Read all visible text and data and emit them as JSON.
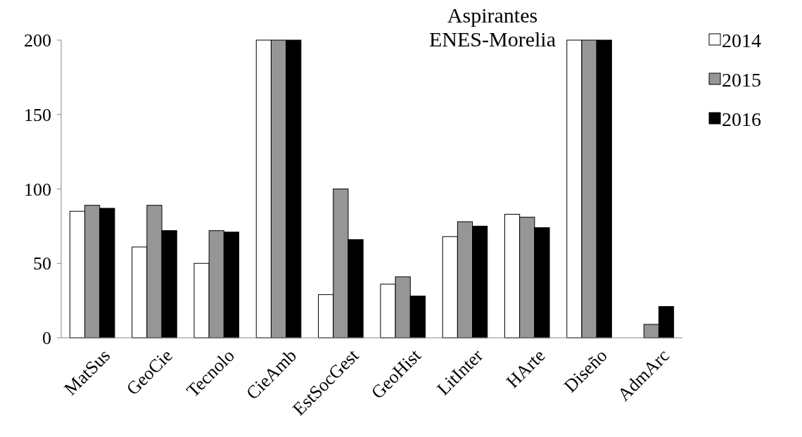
{
  "chart_data": {
    "type": "bar",
    "title": "Aspirantes\nENES-Morelia",
    "categories": [
      "MatSus",
      "GeoCie",
      "Tecnolo",
      "CieAmb",
      "EstSocGest",
      "GeoHist",
      "LitInter",
      "HArte",
      "Diseño",
      "AdmArc"
    ],
    "series": [
      {
        "name": "2014",
        "color": "#ffffff",
        "values": [
          85,
          61,
          50,
          200,
          29,
          36,
          68,
          83,
          200,
          0
        ]
      },
      {
        "name": "2015",
        "color": "#969696",
        "values": [
          89,
          89,
          72,
          200,
          100,
          41,
          78,
          81,
          200,
          9
        ]
      },
      {
        "name": "2016",
        "color": "#000000",
        "values": [
          87,
          72,
          71,
          200,
          66,
          28,
          75,
          74,
          200,
          21
        ]
      }
    ],
    "ylim": [
      0,
      200
    ],
    "yticks": [
      0,
      50,
      100,
      150,
      200
    ],
    "grid": false,
    "legend": "top right"
  }
}
